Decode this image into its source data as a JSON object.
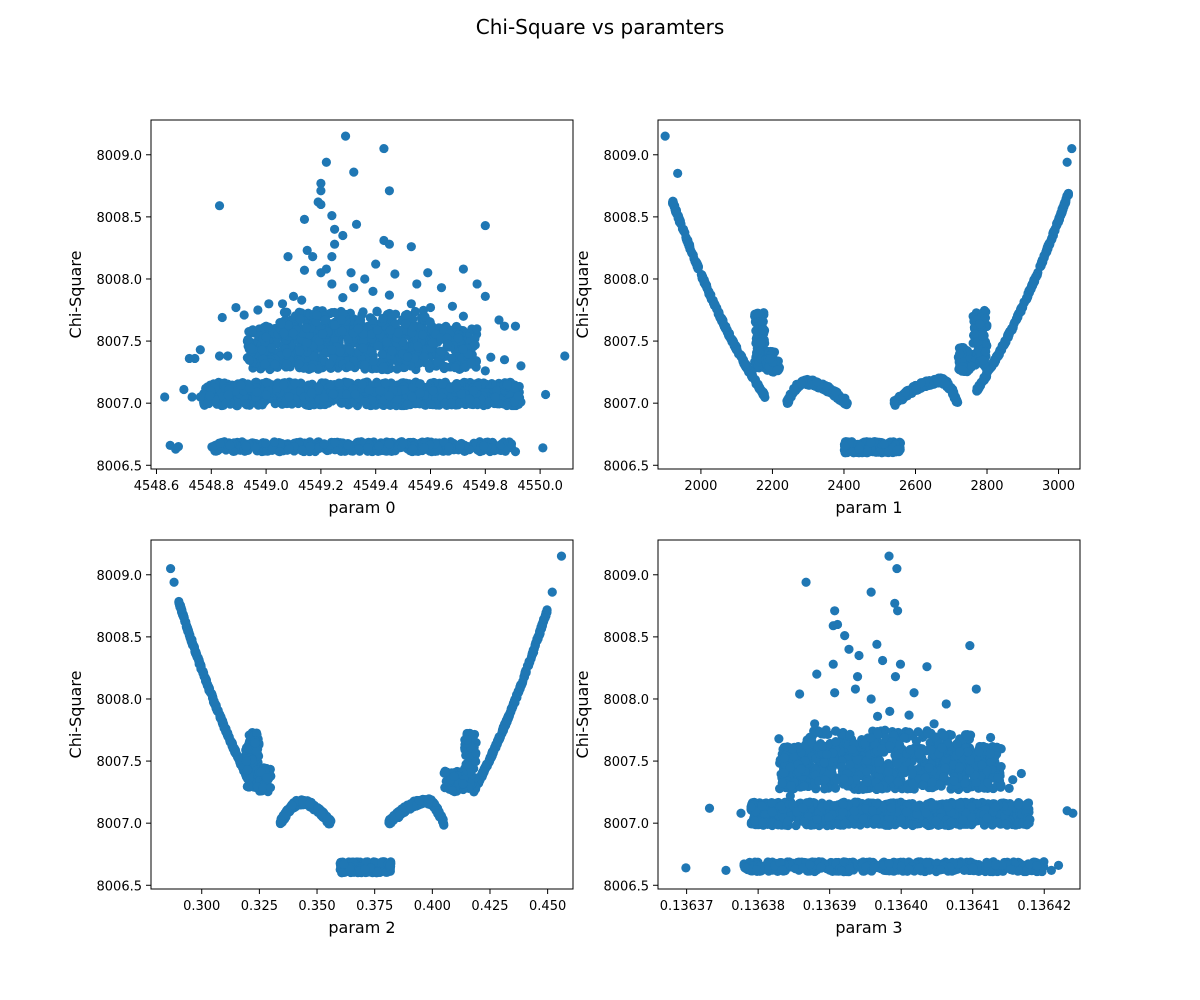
{
  "figure_title": "Chi-Square vs paramters",
  "marker_color": "#1f77b4",
  "chart_data": [
    {
      "type": "scatter",
      "title": "",
      "xlabel": "param 0",
      "ylabel": "Chi-Square",
      "xlim": [
        4548.58,
        4550.12
      ],
      "ylim": [
        8006.47,
        8009.28
      ],
      "xticks": [
        4548.6,
        4548.8,
        4549.0,
        4549.2,
        4549.4,
        4549.6,
        4549.8,
        4550.0
      ],
      "xtick_labels": [
        "4548.6",
        "4548.8",
        "4549.0",
        "4549.2",
        "4549.4",
        "4549.6",
        "4549.8",
        "4550.0"
      ],
      "yticks": [
        8006.5,
        8007.0,
        8007.5,
        8008.0,
        8008.5,
        8009.0
      ],
      "ytick_labels": [
        "8006.5",
        "8007.0",
        "8007.5",
        "8008.0",
        "8008.5",
        "8009.0"
      ],
      "points": [
        [
          4549.29,
          8009.15
        ],
        [
          4549.43,
          8009.05
        ],
        [
          4549.22,
          8008.94
        ],
        [
          4549.32,
          8008.86
        ],
        [
          4549.2,
          8008.77
        ],
        [
          4549.2,
          8008.71
        ],
        [
          4549.45,
          8008.71
        ],
        [
          4549.19,
          8008.62
        ],
        [
          4549.2,
          8008.6
        ],
        [
          4548.83,
          8008.59
        ],
        [
          4549.24,
          8008.51
        ],
        [
          4549.14,
          8008.48
        ],
        [
          4549.33,
          8008.44
        ],
        [
          4549.8,
          8008.43
        ],
        [
          4549.25,
          8008.4
        ],
        [
          4549.28,
          8008.35
        ],
        [
          4549.43,
          8008.31
        ],
        [
          4549.45,
          8008.28
        ],
        [
          4549.25,
          8008.28
        ],
        [
          4549.53,
          8008.26
        ],
        [
          4549.15,
          8008.23
        ],
        [
          4549.17,
          8008.18
        ],
        [
          4549.08,
          8008.18
        ],
        [
          4549.24,
          8008.18
        ],
        [
          4549.4,
          8008.12
        ],
        [
          4549.14,
          8008.07
        ],
        [
          4549.22,
          8008.08
        ],
        [
          4549.31,
          8008.05
        ],
        [
          4549.2,
          8008.05
        ],
        [
          4549.47,
          8008.04
        ],
        [
          4549.59,
          8008.05
        ],
        [
          4549.72,
          8008.08
        ],
        [
          4549.36,
          8008.0
        ],
        [
          4549.24,
          8007.96
        ],
        [
          4549.55,
          8007.96
        ],
        [
          4549.64,
          8007.93
        ],
        [
          4549.77,
          8007.96
        ],
        [
          4549.32,
          8007.93
        ],
        [
          4549.39,
          8007.9
        ],
        [
          4549.8,
          8007.86
        ],
        [
          4549.1,
          8007.86
        ],
        [
          4549.45,
          8007.87
        ],
        [
          4549.28,
          8007.85
        ],
        [
          4549.01,
          8007.8
        ],
        [
          4548.97,
          8007.75
        ],
        [
          4549.06,
          8007.8
        ],
        [
          4549.13,
          8007.83
        ],
        [
          4549.53,
          8007.8
        ],
        [
          4549.6,
          8007.77
        ],
        [
          4549.68,
          8007.78
        ],
        [
          4549.85,
          8007.67
        ],
        [
          4549.87,
          8007.62
        ],
        [
          4548.89,
          8007.77
        ],
        [
          4548.92,
          8007.71
        ],
        [
          4548.84,
          8007.69
        ],
        [
          4549.72,
          8007.7
        ],
        [
          4549.91,
          8007.62
        ],
        [
          4548.95,
          8007.58
        ],
        [
          4549.0,
          8007.62
        ],
        [
          4548.76,
          8007.43
        ],
        [
          4548.74,
          8007.36
        ],
        [
          4548.72,
          8007.36
        ],
        [
          4549.93,
          8007.3
        ],
        [
          4549.87,
          8007.35
        ],
        [
          4549.8,
          8007.26
        ],
        [
          4549.82,
          8007.37
        ],
        [
          4548.83,
          8007.38
        ],
        [
          4548.86,
          8007.38
        ],
        [
          4549.88,
          8007.15
        ],
        [
          4550.09,
          8007.38
        ],
        [
          4548.7,
          8007.11
        ],
        [
          4548.63,
          8007.05
        ],
        [
          4548.73,
          8007.05
        ],
        [
          4548.76,
          8007.05
        ],
        [
          4549.92,
          8007.06
        ],
        [
          4550.02,
          8007.07
        ],
        [
          4548.65,
          8006.66
        ],
        [
          4548.67,
          8006.63
        ],
        [
          4548.68,
          8006.65
        ],
        [
          4550.01,
          8006.64
        ],
        [
          4549.91,
          8006.61
        ]
      ],
      "bands": [
        {
          "x0": 4548.8,
          "x1": 4549.9,
          "ymin": 8006.61,
          "ymax": 8006.69,
          "n": 520
        },
        {
          "x0": 4548.77,
          "x1": 4549.93,
          "ymin": 8006.98,
          "ymax": 8007.17,
          "n": 900
        },
        {
          "x0": 4548.93,
          "x1": 4549.77,
          "ymin": 8007.27,
          "ymax": 8007.62,
          "n": 700
        },
        {
          "x0": 4549.05,
          "x1": 4549.6,
          "ymin": 8007.55,
          "ymax": 8007.75,
          "n": 160
        }
      ]
    },
    {
      "type": "scatter",
      "title": "",
      "xlabel": "param 1",
      "ylabel": "Chi-Square",
      "xlim": [
        1880,
        3060
      ],
      "ylim": [
        8006.47,
        8009.28
      ],
      "xticks": [
        2000,
        2200,
        2400,
        2600,
        2800,
        3000
      ],
      "xtick_labels": [
        "2000",
        "2200",
        "2400",
        "2600",
        "2800",
        "3000"
      ],
      "yticks": [
        8006.5,
        8007.0,
        8007.5,
        8008.0,
        8008.5,
        8009.0
      ],
      "ytick_labels": [
        "8006.5",
        "8007.0",
        "8007.5",
        "8008.0",
        "8008.5",
        "8009.0"
      ],
      "points": [
        [
          1900,
          8009.15
        ],
        [
          3037,
          8009.05
        ],
        [
          3024,
          8008.94
        ],
        [
          1935,
          8008.85
        ]
      ],
      "curves": [
        {
          "type": "parabola",
          "vertex_x": 2470,
          "vertex_y": 8006.45,
          "k": 7.2e-06,
          "x0": 1920,
          "x1": 2180,
          "n": 240,
          "jitter": 0.015
        },
        {
          "type": "parabola",
          "vertex_x": 2470,
          "vertex_y": 8006.45,
          "k": 7.2e-06,
          "x0": 2770,
          "x1": 3030,
          "n": 240,
          "jitter": 0.015
        }
      ],
      "bumps": [
        {
          "x0": 2150,
          "x1": 2180,
          "ymin": 8007.28,
          "ymax": 8007.73,
          "n": 80
        },
        {
          "x0": 2180,
          "x1": 2220,
          "ymin": 8007.25,
          "ymax": 8007.42,
          "n": 60
        },
        {
          "x0": 2760,
          "x1": 2800,
          "ymin": 8007.28,
          "ymax": 8007.75,
          "n": 80
        },
        {
          "x0": 2720,
          "x1": 2760,
          "ymin": 8007.25,
          "ymax": 8007.45,
          "n": 60
        }
      ],
      "arcs": [
        {
          "x0": 2240,
          "x1": 2410,
          "peak_x": 2290,
          "base": 8007.0,
          "peak": 8007.17,
          "n": 180
        },
        {
          "x0": 2540,
          "x1": 2720,
          "peak_x": 2670,
          "base": 8007.0,
          "peak": 8007.18,
          "n": 180
        }
      ],
      "bands": [
        {
          "x0": 2400,
          "x1": 2560,
          "ymin": 8006.6,
          "ymax": 8006.69,
          "n": 260
        }
      ]
    },
    {
      "type": "scatter",
      "title": "",
      "xlabel": "param 2",
      "ylabel": "Chi-Square",
      "xlim": [
        0.278,
        0.461
      ],
      "ylim": [
        8006.47,
        8009.28
      ],
      "xticks": [
        0.3,
        0.325,
        0.35,
        0.375,
        0.4,
        0.425,
        0.45
      ],
      "xtick_labels": [
        "0.300",
        "0.325",
        "0.350",
        "0.375",
        "0.400",
        "0.425",
        "0.450"
      ],
      "yticks": [
        8006.5,
        8007.0,
        8007.5,
        8008.0,
        8008.5,
        8009.0
      ],
      "ytick_labels": [
        "8006.5",
        "8007.0",
        "8007.5",
        "8008.0",
        "8008.5",
        "8009.0"
      ],
      "points": [
        [
          0.2865,
          8009.05
        ],
        [
          0.288,
          8008.94
        ],
        [
          0.456,
          8009.15
        ],
        [
          0.452,
          8008.86
        ]
      ],
      "curves": [
        {
          "type": "parabola",
          "vertex_x": 0.3705,
          "vertex_y": 8006.45,
          "k": 360,
          "x0": 0.29,
          "x1": 0.322,
          "n": 240,
          "jitter": 0.015
        },
        {
          "type": "parabola",
          "vertex_x": 0.3705,
          "vertex_y": 8006.45,
          "k": 360,
          "x0": 0.418,
          "x1": 0.45,
          "n": 240,
          "jitter": 0.015
        }
      ],
      "bumps": [
        {
          "x0": 0.319,
          "x1": 0.325,
          "ymin": 8007.28,
          "ymax": 8007.73,
          "n": 80
        },
        {
          "x0": 0.324,
          "x1": 0.33,
          "ymin": 8007.25,
          "ymax": 8007.45,
          "n": 60
        },
        {
          "x0": 0.414,
          "x1": 0.419,
          "ymin": 8007.28,
          "ymax": 8007.73,
          "n": 80
        },
        {
          "x0": 0.405,
          "x1": 0.414,
          "ymin": 8007.25,
          "ymax": 8007.42,
          "n": 60
        }
      ],
      "arcs": [
        {
          "x0": 0.334,
          "x1": 0.356,
          "peak_x": 0.343,
          "base": 8007.0,
          "peak": 8007.17,
          "n": 180
        },
        {
          "x0": 0.381,
          "x1": 0.405,
          "peak_x": 0.398,
          "base": 8007.0,
          "peak": 8007.18,
          "n": 180
        }
      ],
      "bands": [
        {
          "x0": 0.36,
          "x1": 0.382,
          "ymin": 8006.6,
          "ymax": 8006.69,
          "n": 260
        }
      ]
    },
    {
      "type": "scatter",
      "title": "",
      "xlabel": "param 3",
      "ylabel": "Chi-Square",
      "xlim": [
        0.136366,
        0.136425
      ],
      "ylim": [
        8006.47,
        8009.28
      ],
      "xticks": [
        0.13637,
        0.13638,
        0.13639,
        0.1364,
        0.13641,
        0.13642
      ],
      "xtick_labels": [
        "0.13637",
        "0.13638",
        "0.13639",
        "0.13640",
        "0.13641",
        "0.13642"
      ],
      "yticks": [
        8006.5,
        8007.0,
        8007.5,
        8008.0,
        8008.5,
        8009.0
      ],
      "ytick_labels": [
        "8006.5",
        "8007.0",
        "8007.5",
        "8008.0",
        "8008.5",
        "8009.0"
      ],
      "points": [
        [
          0.1363983,
          8009.15
        ],
        [
          0.1363994,
          8009.05
        ],
        [
          0.1363867,
          8008.94
        ],
        [
          0.1363958,
          8008.86
        ],
        [
          0.1363991,
          8008.77
        ],
        [
          0.1363995,
          8008.71
        ],
        [
          0.1363907,
          8008.71
        ],
        [
          0.1363905,
          8008.59
        ],
        [
          0.1363911,
          8008.6
        ],
        [
          0.1363921,
          8008.51
        ],
        [
          0.1364096,
          8008.43
        ],
        [
          0.1363966,
          8008.44
        ],
        [
          0.1363927,
          8008.4
        ],
        [
          0.1363941,
          8008.35
        ],
        [
          0.1363974,
          8008.31
        ],
        [
          0.1363999,
          8008.28
        ],
        [
          0.1364036,
          8008.26
        ],
        [
          0.1363882,
          8008.2
        ],
        [
          0.1363905,
          8008.28
        ],
        [
          0.1363939,
          8008.18
        ],
        [
          0.1363992,
          8008.18
        ],
        [
          0.1364105,
          8008.08
        ],
        [
          0.1363907,
          8008.05
        ],
        [
          0.1363858,
          8008.04
        ],
        [
          0.1363936,
          8008.08
        ],
        [
          0.1364018,
          8008.05
        ],
        [
          0.1364063,
          8007.96
        ],
        [
          0.1363958,
          8008.0
        ],
        [
          0.1363984,
          8007.9
        ],
        [
          0.1363967,
          8007.86
        ],
        [
          0.1364011,
          8007.87
        ],
        [
          0.1363879,
          8007.8
        ],
        [
          0.1363895,
          8007.75
        ],
        [
          0.1364092,
          8007.7
        ],
        [
          0.1364125,
          8007.69
        ],
        [
          0.1364046,
          8007.8
        ],
        [
          0.1363829,
          8007.68
        ],
        [
          0.1363848,
          8007.6
        ],
        [
          0.1364156,
          8007.35
        ],
        [
          0.1364151,
          8007.28
        ],
        [
          0.1364168,
          8007.4
        ],
        [
          0.1363845,
          8007.22
        ],
        [
          0.1363845,
          8007.45
        ],
        [
          0.1363732,
          8007.12
        ],
        [
          0.1363776,
          8007.08
        ],
        [
          0.1364232,
          8007.1
        ],
        [
          0.136424,
          8007.08
        ],
        [
          0.1364164,
          8007.15
        ],
        [
          0.136418,
          8007.03
        ],
        [
          0.1363699,
          8006.64
        ],
        [
          0.1363755,
          8006.62
        ],
        [
          0.136422,
          8006.66
        ],
        [
          0.136421,
          8006.62
        ]
      ],
      "bands": [
        {
          "x0": 0.136378,
          "x1": 0.13642,
          "ymin": 8006.61,
          "ymax": 8006.69,
          "n": 520
        },
        {
          "x0": 0.136379,
          "x1": 0.136418,
          "ymin": 8006.98,
          "ymax": 8007.17,
          "n": 900
        },
        {
          "x0": 0.136383,
          "x1": 0.136414,
          "ymin": 8007.27,
          "ymax": 8007.62,
          "n": 700
        },
        {
          "x0": 0.136386,
          "x1": 0.13641,
          "ymin": 8007.55,
          "ymax": 8007.75,
          "n": 160
        }
      ]
    }
  ]
}
